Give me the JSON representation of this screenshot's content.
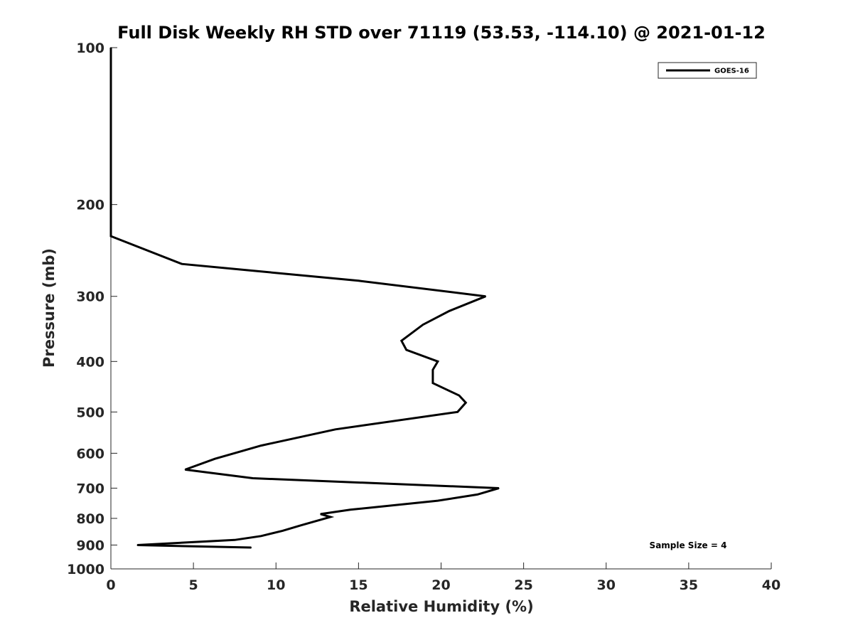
{
  "chart_data": {
    "type": "line",
    "title": "Full Disk Weekly RH STD over 71119 (53.53, -114.10) @ 2021-01-12",
    "xlabel": "Relative Humidity (%)",
    "ylabel": "Pressure (mb)",
    "xlim": [
      0,
      40
    ],
    "ylim": [
      100,
      1000
    ],
    "y_scale": "log",
    "y_reversed": true,
    "grid": false,
    "x_ticks": [
      0,
      5,
      10,
      15,
      20,
      25,
      30,
      35,
      40
    ],
    "y_ticks": [
      100,
      200,
      300,
      400,
      500,
      600,
      700,
      800,
      900,
      1000
    ],
    "legend": {
      "position": "top-right",
      "entries": [
        "GOES-16"
      ]
    },
    "annotation": "Sample Size = 4",
    "series": [
      {
        "name": "GOES-16",
        "color": "#000000",
        "points": [
          {
            "x": 0.0,
            "p": 100
          },
          {
            "x": 0.0,
            "p": 150
          },
          {
            "x": 0.0,
            "p": 200
          },
          {
            "x": 0.0,
            "p": 230
          },
          {
            "x": 4.3,
            "p": 260
          },
          {
            "x": 15.0,
            "p": 280
          },
          {
            "x": 22.7,
            "p": 300
          },
          {
            "x": 20.5,
            "p": 320
          },
          {
            "x": 18.9,
            "p": 340
          },
          {
            "x": 17.6,
            "p": 365
          },
          {
            "x": 17.9,
            "p": 380
          },
          {
            "x": 19.8,
            "p": 400
          },
          {
            "x": 19.5,
            "p": 415
          },
          {
            "x": 19.5,
            "p": 440
          },
          {
            "x": 21.1,
            "p": 465
          },
          {
            "x": 21.5,
            "p": 480
          },
          {
            "x": 21.0,
            "p": 500
          },
          {
            "x": 13.6,
            "p": 540
          },
          {
            "x": 9.1,
            "p": 580
          },
          {
            "x": 6.3,
            "p": 615
          },
          {
            "x": 4.5,
            "p": 645
          },
          {
            "x": 8.6,
            "p": 670
          },
          {
            "x": 23.5,
            "p": 700
          },
          {
            "x": 22.2,
            "p": 720
          },
          {
            "x": 19.8,
            "p": 740
          },
          {
            "x": 14.5,
            "p": 770
          },
          {
            "x": 12.7,
            "p": 785
          },
          {
            "x": 13.3,
            "p": 795
          },
          {
            "x": 11.5,
            "p": 825
          },
          {
            "x": 10.4,
            "p": 845
          },
          {
            "x": 9.1,
            "p": 865
          },
          {
            "x": 7.5,
            "p": 880
          },
          {
            "x": 1.6,
            "p": 900
          },
          {
            "x": 8.5,
            "p": 910
          }
        ]
      }
    ]
  }
}
